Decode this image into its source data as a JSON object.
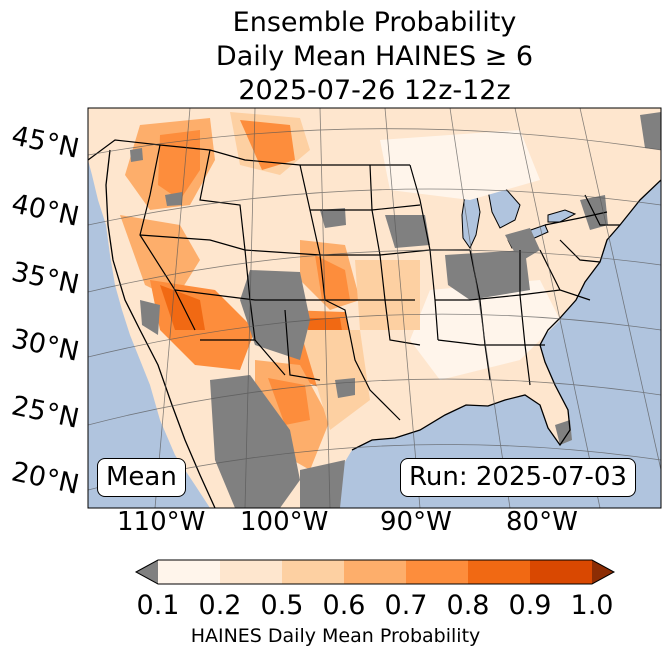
{
  "title_lines": [
    "Ensemble Probability",
    "Daily Mean HAINES ≥ 6",
    "2025-07-26 12z-12z"
  ],
  "lat_labels": [
    "45°N",
    "40°N",
    "35°N",
    "30°N",
    "25°N",
    "20°N"
  ],
  "lon_labels": [
    "110°W",
    "100°W",
    "90°W",
    "80°W"
  ],
  "stat_label": "Mean",
  "run_label": "Run: 2025-07-03",
  "colorbar": {
    "ticks": [
      "0.1",
      "0.2",
      "0.5",
      "0.6",
      "0.7",
      "0.8",
      "0.9",
      "1.0"
    ],
    "label": "HAINES Daily Mean Probability",
    "under_color": "#808080",
    "colors": [
      "#fff5eb",
      "#fee6ce",
      "#fdd0a2",
      "#fdae6b",
      "#fd8d3c",
      "#f16913",
      "#d94801"
    ],
    "over_color": "#8c2d04"
  },
  "colors": {
    "ocean": "#b0c4de",
    "land_base": "#fee6ce",
    "missing": "#808080"
  }
}
